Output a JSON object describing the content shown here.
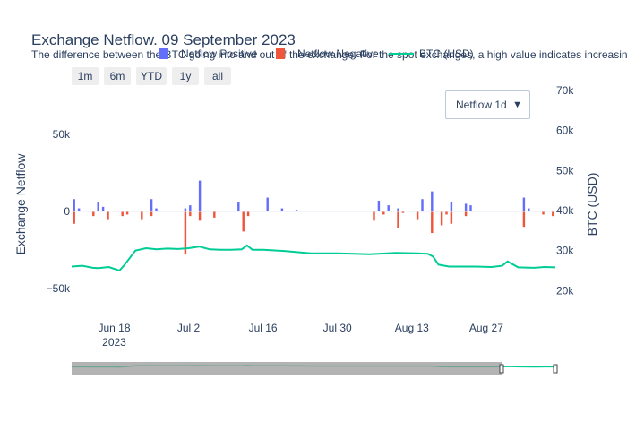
{
  "title": "Exchange Netflow. 09 September 2023",
  "subtitle": "The difference between the BTC going into and out of the exchange. For the spot exchanges, a high value indicates increasing s",
  "range_buttons": [
    "1m",
    "6m",
    "YTD",
    "1y",
    "all"
  ],
  "dropdown": {
    "label": "Netflow 1d"
  },
  "colors": {
    "positive": "#636efa",
    "negative": "#ef553b",
    "btc": "#00cc96",
    "selector_shade": "#999999"
  },
  "chart_data": {
    "type": "bar",
    "title": "Exchange Netflow. 09 September 2023",
    "xlabel": "",
    "ylabel": "Exchange Netflow",
    "y2label": "BTC (USD)",
    "ylim": [
      -50000,
      50000
    ],
    "y2lim": [
      20000,
      70000
    ],
    "x_ticks": [
      "Jun 18\n2023",
      "Jul 2",
      "Jul 16",
      "Jul 30",
      "Aug 13",
      "Aug 27"
    ],
    "y_ticks": [
      "50k",
      "0",
      "−50k"
    ],
    "y2_ticks": [
      "70k",
      "60k",
      "50k",
      "40k",
      "30k",
      "20k"
    ],
    "x_start": "2023-06-10",
    "x_end": "2023-09-09",
    "series": [
      {
        "name": "Netflow Positive",
        "values": [
          8000,
          2000,
          0,
          0,
          0,
          6000,
          3000,
          0,
          0,
          0,
          0,
          0,
          0,
          0,
          0,
          0,
          8000,
          2000,
          0,
          0,
          0,
          0,
          0,
          2000,
          4000,
          0,
          20000,
          0,
          0,
          0,
          0,
          0,
          0,
          0,
          6000,
          0,
          0,
          0,
          0,
          0,
          9000,
          0,
          0,
          2000,
          0,
          0,
          1000,
          0,
          0,
          0,
          0,
          0,
          0,
          0,
          0,
          0,
          0,
          0,
          0,
          0,
          0,
          0,
          0,
          7000,
          0,
          4000,
          0,
          2000,
          0,
          0,
          0,
          0,
          8000,
          0,
          13000,
          0,
          0,
          0,
          6000,
          0,
          0,
          5000,
          4000,
          0,
          0,
          0,
          0,
          0,
          0,
          0,
          0,
          0,
          0,
          9000,
          2000,
          0,
          0,
          0,
          0,
          0
        ]
      },
      {
        "name": "Netflow Negative",
        "values": [
          -8000,
          0,
          0,
          0,
          -3000,
          0,
          0,
          -5000,
          0,
          0,
          -3000,
          -2000,
          0,
          0,
          -5000,
          0,
          -3000,
          0,
          0,
          0,
          0,
          0,
          0,
          -28000,
          -3000,
          0,
          -6000,
          0,
          0,
          -4000,
          0,
          0,
          0,
          0,
          0,
          -13000,
          -3000,
          0,
          0,
          0,
          0,
          0,
          0,
          0,
          0,
          0,
          0,
          0,
          0,
          0,
          0,
          0,
          0,
          0,
          0,
          0,
          0,
          0,
          0,
          0,
          0,
          0,
          -6000,
          0,
          -2000,
          0,
          0,
          -11000,
          -1000,
          0,
          0,
          -5000,
          0,
          0,
          -14000,
          0,
          -9000,
          -2000,
          -8000,
          0,
          0,
          -3000,
          0,
          0,
          0,
          0,
          0,
          0,
          0,
          0,
          0,
          0,
          0,
          -10000,
          0,
          0,
          0,
          -2000,
          0,
          -3000
        ]
      },
      {
        "name": "BTC (USD)",
        "axis": "y2",
        "x": [
          "2023-06-10",
          "2023-06-12",
          "2023-06-14",
          "2023-06-15",
          "2023-06-17",
          "2023-06-19",
          "2023-06-20",
          "2023-06-21",
          "2023-06-22",
          "2023-06-24",
          "2023-06-26",
          "2023-06-28",
          "2023-06-30",
          "2023-07-02",
          "2023-07-04",
          "2023-07-06",
          "2023-07-08",
          "2023-07-10",
          "2023-07-12",
          "2023-07-13",
          "2023-07-14",
          "2023-07-16",
          "2023-07-20",
          "2023-07-25",
          "2023-07-30",
          "2023-08-02",
          "2023-08-05",
          "2023-08-10",
          "2023-08-14",
          "2023-08-16",
          "2023-08-17",
          "2023-08-18",
          "2023-08-20",
          "2023-08-25",
          "2023-08-28",
          "2023-08-30",
          "2023-08-31",
          "2023-09-02",
          "2023-09-05",
          "2023-09-07",
          "2023-09-09"
        ],
        "values": [
          26000,
          26200,
          25700,
          25600,
          25900,
          25000,
          26500,
          28300,
          30000,
          30600,
          30300,
          30500,
          30400,
          30600,
          31000,
          30300,
          30200,
          30200,
          30300,
          31300,
          30200,
          30200,
          29900,
          29300,
          29300,
          29200,
          29100,
          29400,
          29300,
          29200,
          28500,
          26500,
          26000,
          26000,
          25900,
          26200,
          27300,
          25800,
          25700,
          25900,
          25800
        ]
      }
    ]
  }
}
